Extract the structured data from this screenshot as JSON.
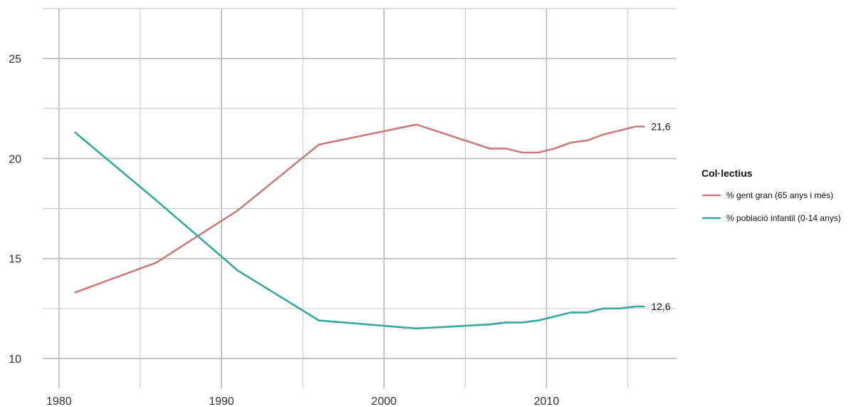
{
  "chart_data": {
    "type": "line",
    "title": "",
    "xlabel": "",
    "ylabel": "",
    "xlim": [
      1979,
      2018
    ],
    "ylim": [
      8.5,
      27.5
    ],
    "x_ticks": [
      1980,
      1990,
      2000,
      2010
    ],
    "x_tick_labels": [
      "1980",
      "1990",
      "2000",
      "2010"
    ],
    "y_ticks": [
      10,
      15,
      20,
      25
    ],
    "y_tick_labels": [
      "10",
      "15",
      "20",
      "25"
    ],
    "grid": true,
    "legend": {
      "title": "Col·lectius",
      "position": "right"
    },
    "series": [
      {
        "name": "% gent gran (65 anys i més)",
        "color": "#c97b7d",
        "end_label": "21,6",
        "points": [
          [
            1981,
            13.3
          ],
          [
            1986,
            14.8
          ],
          [
            1991,
            17.4
          ],
          [
            1996,
            20.7
          ],
          [
            2002,
            21.7
          ],
          [
            2006.5,
            20.5
          ],
          [
            2007.5,
            20.5
          ],
          [
            2008.5,
            20.3
          ],
          [
            2009.5,
            20.3
          ],
          [
            2010.5,
            20.5
          ],
          [
            2011.5,
            20.8
          ],
          [
            2012.5,
            20.9
          ],
          [
            2013.5,
            21.2
          ],
          [
            2014.5,
            21.4
          ],
          [
            2015.5,
            21.6
          ],
          [
            2016,
            21.6
          ]
        ]
      },
      {
        "name": "% població infantil (0-14 anys)",
        "color": "#36a89d",
        "end_label": "12,6",
        "points": [
          [
            1981,
            21.3
          ],
          [
            1986,
            17.9
          ],
          [
            1991,
            14.4
          ],
          [
            1996,
            11.9
          ],
          [
            2002,
            11.5
          ],
          [
            2006.5,
            11.7
          ],
          [
            2007.5,
            11.8
          ],
          [
            2008.5,
            11.8
          ],
          [
            2009.5,
            11.9
          ],
          [
            2010.5,
            12.1
          ],
          [
            2011.5,
            12.3
          ],
          [
            2012.5,
            12.3
          ],
          [
            2013.5,
            12.5
          ],
          [
            2014.5,
            12.5
          ],
          [
            2015.5,
            12.6
          ],
          [
            2016,
            12.6
          ]
        ]
      }
    ]
  }
}
